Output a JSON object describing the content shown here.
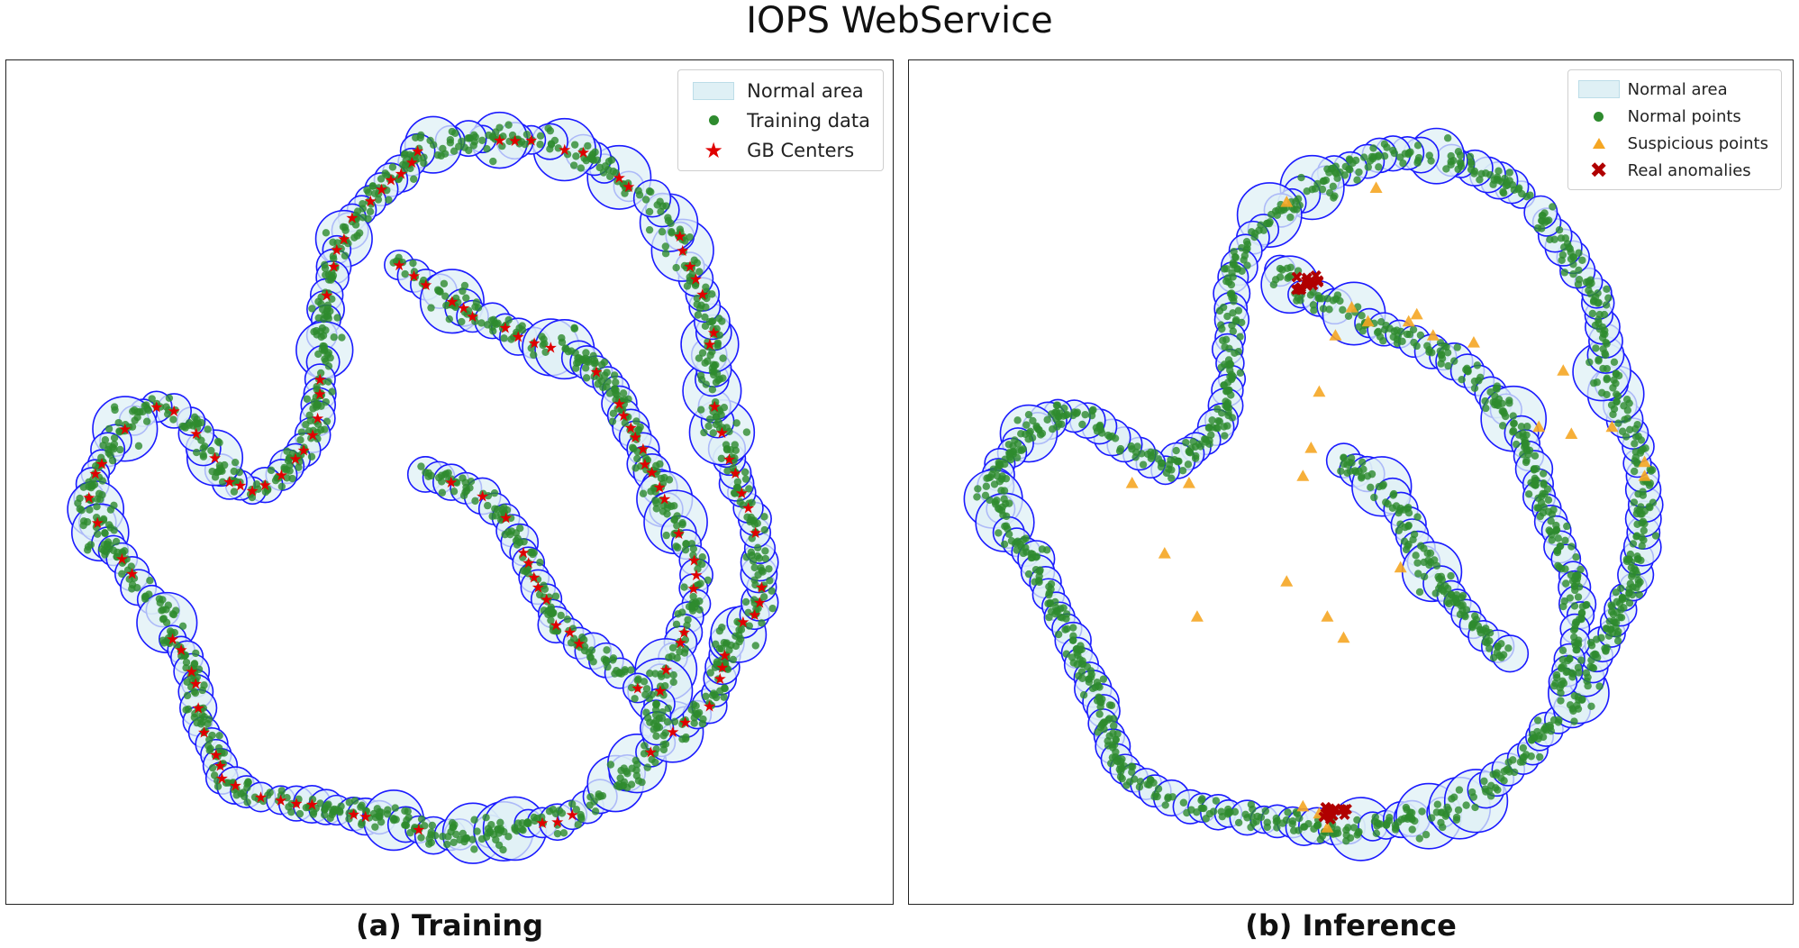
{
  "title": "IOPS WebService",
  "colors": {
    "normal_area_fill": "#dff0f5",
    "circle_stroke": "#1a1aff",
    "points": "#2e8b2e",
    "gb_centers": "#e00000",
    "suspicious": "#f5a623",
    "anomalies": "#b00000"
  },
  "chart_data": [
    {
      "type": "scatter",
      "caption": "(a) Training",
      "grid": false,
      "axes_visible": false,
      "xlim": [
        0,
        100
      ],
      "ylim": [
        0,
        100
      ],
      "legend": {
        "placement": "top-right",
        "entries": [
          {
            "label": "Normal area",
            "marker": "light-blue-fill"
          },
          {
            "label": "Training data",
            "marker": "green-circle"
          },
          {
            "label": "GB Centers",
            "marker": "red-star"
          }
        ]
      },
      "granular_ball_chains": [
        {
          "points": [
            [
              72,
              89
            ],
            [
              69,
              92
            ],
            [
              66,
              94
            ],
            [
              60,
              96
            ],
            [
              54,
              96
            ],
            [
              50,
              96
            ],
            [
              46,
              94
            ],
            [
              43,
              90
            ],
            [
              39,
              86
            ],
            [
              36,
              80
            ],
            [
              35,
              74
            ],
            [
              34.5,
              68
            ],
            [
              34,
              62
            ],
            [
              34,
              56
            ],
            [
              32,
              52
            ],
            [
              29,
              48
            ],
            [
              26,
              46
            ],
            [
              23,
              47
            ],
            [
              20,
              52
            ],
            [
              18,
              56
            ],
            [
              14,
              58
            ],
            [
              10,
              55
            ],
            [
              7,
              50
            ],
            [
              6,
              45
            ],
            [
              7,
              40
            ],
            [
              10,
              36
            ],
            [
              12,
              32
            ],
            [
              15,
              29
            ],
            [
              16,
              25
            ],
            [
              18,
              22
            ],
            [
              19,
              17
            ],
            [
              19,
              13
            ],
            [
              21,
              10
            ],
            [
              22,
              5
            ],
            [
              25,
              3
            ],
            [
              29,
              2
            ],
            [
              33,
              1
            ],
            [
              38,
              0
            ],
            [
              43,
              -1
            ],
            [
              48,
              -3
            ],
            [
              53,
              -3
            ],
            [
              58,
              -2
            ],
            [
              63,
              -1
            ],
            [
              67,
              1
            ],
            [
              70,
              4
            ],
            [
              73,
              7
            ],
            [
              76,
              10
            ],
            [
              79,
              13
            ],
            [
              82,
              15
            ],
            [
              83,
              19
            ],
            [
              84,
              24
            ],
            [
              86,
              27
            ],
            [
              88,
              30
            ],
            [
              88,
              36
            ],
            [
              87,
              42
            ],
            [
              85,
              47
            ],
            [
              84,
              52
            ],
            [
              83,
              56
            ],
            [
              82,
              60
            ],
            [
              82,
              65
            ],
            [
              82,
              70
            ],
            [
              80,
              76
            ],
            [
              78,
              82
            ],
            [
              76,
              86
            ],
            [
              73,
              89
            ]
          ],
          "r": 1.8
        },
        {
          "points": [
            [
              44,
              78
            ],
            [
              47,
              75
            ],
            [
              50,
              73
            ],
            [
              53,
              71
            ],
            [
              57,
              69
            ],
            [
              60,
              67
            ],
            [
              64,
              66
            ],
            [
              67,
              64
            ],
            [
              70,
              60
            ],
            [
              72,
              55
            ],
            [
              74,
              50
            ],
            [
              76,
              45
            ],
            [
              78,
              40
            ],
            [
              80,
              36
            ],
            [
              80,
              30
            ],
            [
              78,
              24
            ],
            [
              76,
              19
            ],
            [
              75,
              14
            ],
            [
              76,
              10
            ]
          ],
          "r": 1.8
        },
        {
          "points": [
            [
              47,
              48
            ],
            [
              50,
              47
            ],
            [
              54,
              45
            ],
            [
              57,
              42
            ],
            [
              59,
              37
            ],
            [
              61,
              32
            ],
            [
              63,
              27
            ],
            [
              66,
              24
            ],
            [
              69,
              22
            ],
            [
              71,
              20
            ],
            [
              73,
              18
            ],
            [
              75,
              17
            ]
          ],
          "r": 1.8
        }
      ],
      "gb_centers_sampled": [
        [
          72,
          89
        ],
        [
          60,
          96
        ],
        [
          46,
          94
        ],
        [
          36,
          80
        ],
        [
          34,
          62
        ],
        [
          26,
          46
        ],
        [
          14,
          58
        ],
        [
          7,
          45
        ],
        [
          12,
          32
        ],
        [
          19,
          17
        ],
        [
          25,
          3
        ],
        [
          38,
          0
        ],
        [
          53,
          -3
        ],
        [
          67,
          1
        ],
        [
          79,
          13
        ],
        [
          86,
          27
        ],
        [
          85,
          47
        ],
        [
          82,
          65
        ],
        [
          76,
          86
        ],
        [
          50,
          73
        ],
        [
          64,
          66
        ],
        [
          74,
          50
        ],
        [
          80,
          30
        ],
        [
          54,
          45
        ],
        [
          63,
          27
        ]
      ]
    },
    {
      "type": "scatter",
      "caption": "(b) Inference",
      "grid": false,
      "axes_visible": false,
      "xlim": [
        0,
        100
      ],
      "ylim": [
        0,
        100
      ],
      "legend": {
        "placement": "top-right",
        "entries": [
          {
            "label": "Normal area",
            "marker": "light-blue-fill"
          },
          {
            "label": "Normal points",
            "marker": "green-circle"
          },
          {
            "label": "Suspicious points",
            "marker": "orange-triangle"
          },
          {
            "label": "Real anomalies",
            "marker": "red-x"
          }
        ]
      },
      "granular_ball_chains": [
        {
          "points": [
            [
              71,
              88
            ],
            [
              67,
              91
            ],
            [
              62,
              93
            ],
            [
              57,
              94
            ],
            [
              52,
              93
            ],
            [
              48,
              91
            ],
            [
              44,
              88
            ],
            [
              40,
              85
            ],
            [
              37,
              80
            ],
            [
              35,
              74
            ],
            [
              35,
              68
            ],
            [
              35,
              62
            ],
            [
              34,
              56
            ],
            [
              31,
              52
            ],
            [
              27,
              49
            ],
            [
              24,
              51
            ],
            [
              19,
              55
            ],
            [
              14,
              57
            ],
            [
              10,
              54
            ],
            [
              7,
              50
            ],
            [
              6,
              45
            ],
            [
              8,
              40
            ],
            [
              11,
              36
            ],
            [
              13,
              31
            ],
            [
              15,
              26
            ],
            [
              17,
              21
            ],
            [
              19,
              16
            ],
            [
              20,
              11
            ],
            [
              22,
              6
            ],
            [
              26,
              3
            ],
            [
              30,
              1
            ],
            [
              35,
              0
            ],
            [
              41,
              -1
            ],
            [
              46,
              -2
            ],
            [
              51,
              -2
            ],
            [
              56,
              -1
            ],
            [
              61,
              0
            ],
            [
              65,
              2
            ],
            [
              68,
              5
            ],
            [
              71,
              8
            ],
            [
              74,
              12
            ],
            [
              77,
              15
            ],
            [
              79,
              19
            ],
            [
              81,
              24
            ],
            [
              83,
              29
            ],
            [
              85,
              34
            ],
            [
              86,
              40
            ],
            [
              86,
              46
            ],
            [
              85,
              52
            ],
            [
              83,
              58
            ],
            [
              81,
              63
            ],
            [
              81,
              69
            ],
            [
              80,
              74
            ],
            [
              77,
              79
            ],
            [
              74,
              84
            ],
            [
              72,
              87
            ]
          ],
          "r": 1.8
        },
        {
          "points": [
            [
              41,
              77
            ],
            [
              44,
              74
            ],
            [
              48,
              72
            ],
            [
              52,
              70
            ],
            [
              56,
              68
            ],
            [
              60,
              66
            ],
            [
              64,
              63
            ],
            [
              67,
              60
            ],
            [
              70,
              56
            ],
            [
              72,
              51
            ],
            [
              73,
              45
            ],
            [
              75,
              40
            ],
            [
              77,
              34
            ],
            [
              78,
              28
            ],
            [
              77,
              22
            ],
            [
              75,
              17
            ]
          ],
          "r": 1.8
        },
        {
          "points": [
            [
              49,
              50
            ],
            [
              52,
              48
            ],
            [
              55,
              45
            ],
            [
              57,
              41
            ],
            [
              59,
              36
            ],
            [
              62,
              31
            ],
            [
              65,
              27
            ],
            [
              68,
              24
            ],
            [
              71,
              21
            ]
          ],
          "r": 1.8
        }
      ],
      "suspicious_points_sampled": [
        [
          42,
          87
        ],
        [
          53,
          89
        ],
        [
          50,
          72
        ],
        [
          52,
          70
        ],
        [
          57,
          70
        ],
        [
          58,
          71
        ],
        [
          48,
          68
        ],
        [
          46,
          60
        ],
        [
          45,
          52
        ],
        [
          44,
          48
        ],
        [
          23,
          47
        ],
        [
          30,
          47
        ],
        [
          27,
          37
        ],
        [
          31,
          28
        ],
        [
          42,
          33
        ],
        [
          47,
          28
        ],
        [
          49,
          25
        ],
        [
          56,
          35
        ],
        [
          76,
          63
        ],
        [
          73,
          55
        ],
        [
          77,
          54
        ],
        [
          82,
          55
        ],
        [
          86,
          50
        ],
        [
          86,
          48
        ],
        [
          65,
          67
        ],
        [
          60,
          68
        ],
        [
          44,
          1
        ],
        [
          46,
          0
        ],
        [
          47,
          -2
        ]
      ],
      "real_anomaly_clusters": [
        [
          44.5,
          75.5
        ],
        [
          48,
          0
        ]
      ]
    }
  ]
}
